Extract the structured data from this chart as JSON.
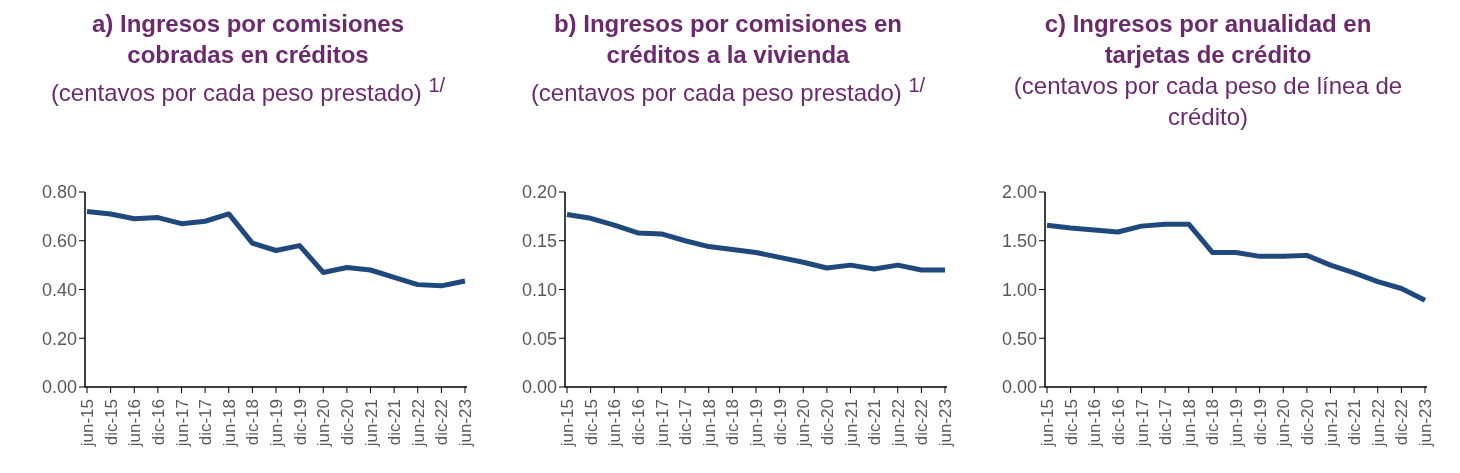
{
  "chart_data": [
    {
      "type": "line",
      "title": "a) Ingresos por comisiones cobradas en créditos",
      "subtitle": "(centavos por cada peso prestado) $^{1/}$",
      "categories": [
        "jun-15",
        "dic-15",
        "jun-16",
        "dic-16",
        "jun-17",
        "dic-17",
        "jun-18",
        "dic-18",
        "jun-19",
        "dic-19",
        "jun-20",
        "dic-20",
        "jun-21",
        "dic-21",
        "jun-22",
        "dic-22",
        "jun-23"
      ],
      "series": [
        {
          "color": "#1f497d",
          "values": [
            0.72,
            0.71,
            0.69,
            0.695,
            0.67,
            0.68,
            0.71,
            0.59,
            0.56,
            0.58,
            0.47,
            0.49,
            0.48,
            0.45,
            0.42,
            0.415,
            0.435
          ]
        }
      ],
      "ylim": [
        0,
        0.8
      ],
      "yticks": [
        {
          "value": 0,
          "label": "0.00"
        },
        {
          "value": 0.2,
          "label": "0.20"
        },
        {
          "value": 0.4,
          "label": "0.40"
        },
        {
          "value": 0.6,
          "label": "0.60"
        },
        {
          "value": 0.8,
          "label": "0.80"
        }
      ],
      "grid": false,
      "legend": false,
      "marker": "none",
      "line_style": "solid"
    },
    {
      "type": "line",
      "title": "b) Ingresos por comisiones en créditos a la vivienda",
      "subtitle": "(centavos por cada peso prestado) $^{1/}$",
      "categories": [
        "jun-15",
        "dic-15",
        "jun-16",
        "dic-16",
        "jun-17",
        "dic-17",
        "jun-18",
        "dic-18",
        "jun-19",
        "dic-19",
        "jun-20",
        "dic-20",
        "jun-21",
        "dic-21",
        "jun-22",
        "dic-22",
        "jun-23"
      ],
      "series": [
        {
          "color": "#1f497d",
          "values": [
            0.177,
            0.173,
            0.166,
            0.158,
            0.157,
            0.15,
            0.144,
            0.141,
            0.138,
            0.133,
            0.128,
            0.122,
            0.125,
            0.121,
            0.125,
            0.12,
            0.12
          ]
        }
      ],
      "ylim": [
        0,
        0.2
      ],
      "yticks": [
        {
          "value": 0,
          "label": "0.00"
        },
        {
          "value": 0.05,
          "label": "0.05"
        },
        {
          "value": 0.1,
          "label": "0.10"
        },
        {
          "value": 0.15,
          "label": "0.15"
        },
        {
          "value": 0.2,
          "label": "0.20"
        }
      ],
      "grid": false,
      "legend": false,
      "marker": "none",
      "line_style": "solid"
    },
    {
      "type": "line",
      "title": "c) Ingresos por anualidad en tarjetas de crédito",
      "subtitle": "(centavos por cada peso de línea de crédito)",
      "categories": [
        "jun-15",
        "dic-15",
        "jun-16",
        "dic-16",
        "jun-17",
        "dic-17",
        "jun-18",
        "dic-18",
        "jun-19",
        "dic-19",
        "jun-20",
        "dic-20",
        "jun-21",
        "dic-21",
        "jun-22",
        "dic-22",
        "jun-23"
      ],
      "series": [
        {
          "color": "#1f497d",
          "values": [
            1.66,
            1.63,
            1.61,
            1.59,
            1.65,
            1.67,
            1.67,
            1.38,
            1.38,
            1.34,
            1.34,
            1.35,
            1.25,
            1.17,
            1.08,
            1.01,
            0.89
          ]
        }
      ],
      "ylim": [
        0,
        2
      ],
      "yticks": [
        {
          "value": 0,
          "label": "0.00"
        },
        {
          "value": 0.5,
          "label": "0.50"
        },
        {
          "value": 1,
          "label": "1.00"
        },
        {
          "value": 1.5,
          "label": "1.50"
        },
        {
          "value": 2,
          "label": "2.00"
        }
      ],
      "grid": false,
      "legend": false,
      "marker": "none",
      "line_style": "solid"
    }
  ]
}
